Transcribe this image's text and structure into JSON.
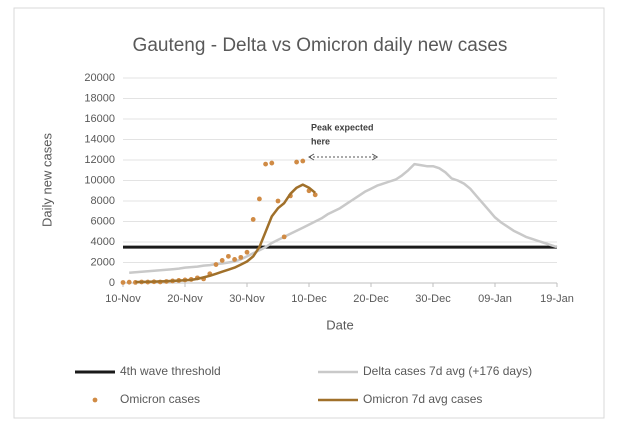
{
  "chart_data": {
    "type": "line",
    "title": "Gauteng -  Delta vs Omicron daily new cases",
    "xlabel": "Date",
    "ylabel": "Daily new cases",
    "x": [
      "10-Nov",
      "11-Nov",
      "12-Nov",
      "13-Nov",
      "14-Nov",
      "15-Nov",
      "16-Nov",
      "17-Nov",
      "18-Nov",
      "19-Nov",
      "20-Nov",
      "21-Nov",
      "22-Nov",
      "23-Nov",
      "24-Nov",
      "25-Nov",
      "26-Nov",
      "27-Nov",
      "28-Nov",
      "29-Nov",
      "30-Nov",
      "01-Dec",
      "02-Dec",
      "03-Dec",
      "04-Dec",
      "05-Dec",
      "06-Dec",
      "07-Dec",
      "08-Dec",
      "09-Dec",
      "10-Dec",
      "11-Dec",
      "12-Dec",
      "13-Dec",
      "14-Dec",
      "15-Dec",
      "16-Dec",
      "17-Dec",
      "18-Dec",
      "19-Dec",
      "20-Dec",
      "21-Dec",
      "22-Dec",
      "23-Dec",
      "24-Dec",
      "25-Dec",
      "26-Dec",
      "27-Dec",
      "28-Dec",
      "29-Dec",
      "30-Dec",
      "31-Dec",
      "01-Jan",
      "02-Jan",
      "03-Jan",
      "04-Jan",
      "05-Jan",
      "06-Jan",
      "07-Jan",
      "08-Jan",
      "09-Jan",
      "10-Jan",
      "11-Jan",
      "12-Jan",
      "13-Jan",
      "14-Jan",
      "15-Jan",
      "16-Jan",
      "17-Jan",
      "18-Jan",
      "19-Jan"
    ],
    "xticks": [
      "10-Nov",
      "20-Nov",
      "30-Nov",
      "10-Dec",
      "20-Dec",
      "30-Dec",
      "09-Jan",
      "19-Jan"
    ],
    "ylim": [
      0,
      20000
    ],
    "yticks": [
      0,
      2000,
      4000,
      6000,
      8000,
      10000,
      12000,
      14000,
      16000,
      18000,
      20000
    ],
    "grid": true,
    "series": [
      {
        "name": "4th wave threshold",
        "kind": "hline",
        "color": "#1a1a1a",
        "value": 3500
      },
      {
        "name": "Delta cases 7d avg (+176 days)",
        "kind": "line",
        "color": "#c9c9c9",
        "values": [
          null,
          1000,
          1050,
          1100,
          1150,
          1200,
          1250,
          1300,
          1350,
          1400,
          1500,
          1550,
          1600,
          1700,
          1750,
          1850,
          1900,
          2000,
          2100,
          2300,
          2600,
          2900,
          3200,
          3500,
          3900,
          4200,
          4500,
          4800,
          5100,
          5400,
          5700,
          6000,
          6300,
          6700,
          7000,
          7300,
          7700,
          8100,
          8500,
          8900,
          9200,
          9500,
          9700,
          9900,
          10100,
          10500,
          11000,
          11600,
          11500,
          11400,
          11400,
          11200,
          10800,
          10200,
          10000,
          9700,
          9200,
          8500,
          7800,
          7100,
          6400,
          5900,
          5500,
          5100,
          4800,
          4500,
          4300,
          4100,
          3900,
          3700,
          3500
        ]
      },
      {
        "name": "Omicron cases",
        "kind": "scatter",
        "color": "#d08b45",
        "values": [
          50,
          80,
          60,
          100,
          90,
          120,
          100,
          150,
          200,
          250,
          300,
          350,
          500,
          400,
          900,
          1800,
          2200,
          2600,
          2300,
          2500,
          3000,
          6200,
          8200,
          11600,
          11700,
          8000,
          4500,
          8500,
          11800,
          11900,
          9000,
          8600,
          null,
          null,
          null,
          null,
          null,
          null,
          null,
          null,
          null,
          null,
          null,
          null,
          null,
          null,
          null,
          null,
          null,
          null,
          null,
          null,
          null,
          null,
          null,
          null,
          null,
          null,
          null,
          null,
          null,
          null,
          null,
          null,
          null,
          null,
          null,
          null,
          null,
          null,
          null
        ]
      },
      {
        "name": "Omicron 7d avg cases",
        "kind": "line",
        "color": "#a0702a",
        "values": [
          null,
          null,
          100,
          100,
          120,
          140,
          160,
          180,
          200,
          230,
          260,
          300,
          400,
          550,
          700,
          900,
          1100,
          1300,
          1500,
          1800,
          2100,
          2600,
          3500,
          5000,
          6500,
          7300,
          7800,
          8700,
          9300,
          9600,
          9300,
          8800,
          null,
          null,
          null,
          null,
          null,
          null,
          null,
          null,
          null,
          null,
          null,
          null,
          null,
          null,
          null,
          null,
          null,
          null,
          null,
          null,
          null,
          null,
          null,
          null,
          null,
          null,
          null,
          null,
          null,
          null,
          null,
          null,
          null,
          null,
          null,
          null,
          null,
          null,
          null
        ]
      }
    ],
    "annotation": {
      "text": [
        "Peak expected",
        "here"
      ],
      "x": [
        "10-Dec",
        "21-Dec"
      ]
    }
  }
}
